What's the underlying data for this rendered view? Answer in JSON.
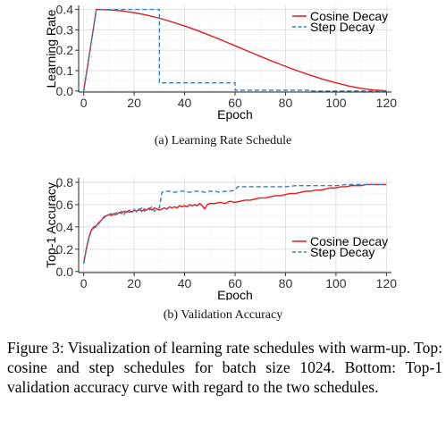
{
  "charts": [
    {
      "type": "line",
      "title": "",
      "xlabel": "Epoch",
      "ylabel": "Learning Rate",
      "xlim": [
        -2,
        122
      ],
      "ylim": [
        -0.005,
        0.42
      ],
      "xticks": [
        0,
        20,
        40,
        60,
        80,
        100,
        120
      ],
      "yticks": [
        0.0,
        0.1,
        0.2,
        0.3,
        0.4
      ],
      "ytick_labels": [
        "0.0",
        "0.1",
        "0.2",
        "0.3",
        "0.4"
      ],
      "grid": true,
      "legend": "top-right",
      "series": [
        {
          "name": "Cosine Decay",
          "color": "#e41a1c",
          "style": "solid",
          "points": [
            [
              0,
              0.0
            ],
            [
              5,
              0.4
            ],
            [
              10,
              0.398
            ],
            [
              15,
              0.393
            ],
            [
              20,
              0.384
            ],
            [
              25,
              0.372
            ],
            [
              30,
              0.357
            ],
            [
              35,
              0.339
            ],
            [
              40,
              0.319
            ],
            [
              45,
              0.297
            ],
            [
              50,
              0.273
            ],
            [
              55,
              0.248
            ],
            [
              60,
              0.222
            ],
            [
              65,
              0.196
            ],
            [
              70,
              0.17
            ],
            [
              75,
              0.145
            ],
            [
              80,
              0.121
            ],
            [
              85,
              0.098
            ],
            [
              90,
              0.077
            ],
            [
              95,
              0.057
            ],
            [
              100,
              0.04
            ],
            [
              105,
              0.025
            ],
            [
              110,
              0.013
            ],
            [
              115,
              0.005
            ],
            [
              120,
              0.001
            ]
          ]
        },
        {
          "name": "Step Decay",
          "color": "#377eb8",
          "style": "dashed",
          "points": [
            [
              0,
              0.0
            ],
            [
              5,
              0.4
            ],
            [
              30,
              0.4
            ],
            [
              30,
              0.04
            ],
            [
              60,
              0.04
            ],
            [
              60,
              0.004
            ],
            [
              90,
              0.004
            ],
            [
              90,
              0.0004
            ],
            [
              120,
              0.0004
            ]
          ]
        }
      ]
    },
    {
      "type": "line",
      "title": "",
      "xlabel": "Epoch",
      "ylabel": "Top-1 Accuracy",
      "xlim": [
        -2,
        122
      ],
      "ylim": [
        -0.01,
        0.84
      ],
      "xticks": [
        0,
        20,
        40,
        60,
        80,
        100,
        120
      ],
      "yticks": [
        0.0,
        0.2,
        0.4,
        0.6,
        0.8
      ],
      "ytick_labels": [
        "0.0",
        "0.2",
        "0.4",
        "0.6",
        "0.8"
      ],
      "grid": true,
      "legend": "bottom-right",
      "series": [
        {
          "name": "Cosine Decay",
          "color": "#e41a1c",
          "style": "solid",
          "points": [
            [
              0,
              0.07
            ],
            [
              1,
              0.2
            ],
            [
              2,
              0.3
            ],
            [
              3,
              0.37
            ],
            [
              4,
              0.4
            ],
            [
              5,
              0.41
            ],
            [
              6,
              0.44
            ],
            [
              7,
              0.46
            ],
            [
              8,
              0.49
            ],
            [
              9,
              0.5
            ],
            [
              10,
              0.51
            ],
            [
              11,
              0.5
            ],
            [
              12,
              0.52
            ],
            [
              13,
              0.51
            ],
            [
              14,
              0.53
            ],
            [
              15,
              0.52
            ],
            [
              16,
              0.54
            ],
            [
              17,
              0.53
            ],
            [
              18,
              0.55
            ],
            [
              19,
              0.53
            ],
            [
              20,
              0.55
            ],
            [
              21,
              0.54
            ],
            [
              22,
              0.56
            ],
            [
              23,
              0.54
            ],
            [
              24,
              0.56
            ],
            [
              25,
              0.55
            ],
            [
              26,
              0.57
            ],
            [
              27,
              0.55
            ],
            [
              28,
              0.57
            ],
            [
              29,
              0.56
            ],
            [
              30,
              0.55
            ],
            [
              31,
              0.56
            ],
            [
              32,
              0.57
            ],
            [
              33,
              0.56
            ],
            [
              34,
              0.58
            ],
            [
              35,
              0.57
            ],
            [
              36,
              0.58
            ],
            [
              37,
              0.57
            ],
            [
              38,
              0.59
            ],
            [
              39,
              0.58
            ],
            [
              40,
              0.59
            ],
            [
              41,
              0.58
            ],
            [
              42,
              0.6
            ],
            [
              43,
              0.59
            ],
            [
              44,
              0.6
            ],
            [
              45,
              0.59
            ],
            [
              46,
              0.61
            ],
            [
              47,
              0.59
            ],
            [
              48,
              0.56
            ],
            [
              49,
              0.6
            ],
            [
              50,
              0.61
            ],
            [
              52,
              0.61
            ],
            [
              54,
              0.62
            ],
            [
              56,
              0.61
            ],
            [
              58,
              0.63
            ],
            [
              60,
              0.62
            ],
            [
              62,
              0.63
            ],
            [
              64,
              0.64
            ],
            [
              66,
              0.64
            ],
            [
              68,
              0.65
            ],
            [
              70,
              0.66
            ],
            [
              72,
              0.66
            ],
            [
              74,
              0.67
            ],
            [
              76,
              0.68
            ],
            [
              78,
              0.68
            ],
            [
              80,
              0.69
            ],
            [
              82,
              0.7
            ],
            [
              84,
              0.7
            ],
            [
              86,
              0.71
            ],
            [
              88,
              0.72
            ],
            [
              90,
              0.72
            ],
            [
              92,
              0.73
            ],
            [
              94,
              0.73
            ],
            [
              96,
              0.74
            ],
            [
              98,
              0.75
            ],
            [
              100,
              0.75
            ],
            [
              102,
              0.76
            ],
            [
              104,
              0.76
            ],
            [
              106,
              0.77
            ],
            [
              108,
              0.77
            ],
            [
              110,
              0.77
            ],
            [
              112,
              0.78
            ],
            [
              114,
              0.78
            ],
            [
              116,
              0.78
            ],
            [
              118,
              0.78
            ],
            [
              120,
              0.78
            ]
          ]
        },
        {
          "name": "Step Decay",
          "color": "#377eb8",
          "style": "dashed",
          "points": [
            [
              0,
              0.07
            ],
            [
              1,
              0.19
            ],
            [
              2,
              0.29
            ],
            [
              3,
              0.36
            ],
            [
              4,
              0.39
            ],
            [
              5,
              0.4
            ],
            [
              6,
              0.43
            ],
            [
              7,
              0.46
            ],
            [
              8,
              0.48
            ],
            [
              9,
              0.5
            ],
            [
              10,
              0.51
            ],
            [
              11,
              0.52
            ],
            [
              12,
              0.5
            ],
            [
              13,
              0.53
            ],
            [
              14,
              0.52
            ],
            [
              15,
              0.54
            ],
            [
              16,
              0.51
            ],
            [
              17,
              0.55
            ],
            [
              18,
              0.53
            ],
            [
              19,
              0.54
            ],
            [
              20,
              0.56
            ],
            [
              21,
              0.53
            ],
            [
              22,
              0.55
            ],
            [
              23,
              0.57
            ],
            [
              24,
              0.54
            ],
            [
              25,
              0.56
            ],
            [
              26,
              0.55
            ],
            [
              27,
              0.58
            ],
            [
              28,
              0.54
            ],
            [
              29,
              0.56
            ],
            [
              30,
              0.57
            ],
            [
              31,
              0.71
            ],
            [
              32,
              0.72
            ],
            [
              34,
              0.72
            ],
            [
              36,
              0.71
            ],
            [
              38,
              0.72
            ],
            [
              40,
              0.72
            ],
            [
              42,
              0.71
            ],
            [
              44,
              0.72
            ],
            [
              46,
              0.72
            ],
            [
              48,
              0.71
            ],
            [
              50,
              0.72
            ],
            [
              52,
              0.72
            ],
            [
              54,
              0.71
            ],
            [
              56,
              0.72
            ],
            [
              58,
              0.72
            ],
            [
              60,
              0.73
            ],
            [
              61,
              0.76
            ],
            [
              64,
              0.76
            ],
            [
              68,
              0.76
            ],
            [
              72,
              0.76
            ],
            [
              76,
              0.76
            ],
            [
              80,
              0.76
            ],
            [
              84,
              0.77
            ],
            [
              88,
              0.77
            ],
            [
              90,
              0.77
            ],
            [
              92,
              0.77
            ],
            [
              96,
              0.77
            ],
            [
              100,
              0.77
            ],
            [
              104,
              0.78
            ],
            [
              108,
              0.78
            ],
            [
              112,
              0.78
            ],
            [
              116,
              0.78
            ],
            [
              120,
              0.78
            ]
          ]
        }
      ]
    }
  ],
  "captions": {
    "sub_a": "(a) Learning Rate Schedule",
    "sub_b": "(b) Validation Accuracy",
    "main": "Figure 3:  Visualization of learning rate schedules with warm-up.  Top: cosine and step schedules for batch size 1024. Bottom: Top-1 validation accuracy curve with regard to the two schedules."
  }
}
